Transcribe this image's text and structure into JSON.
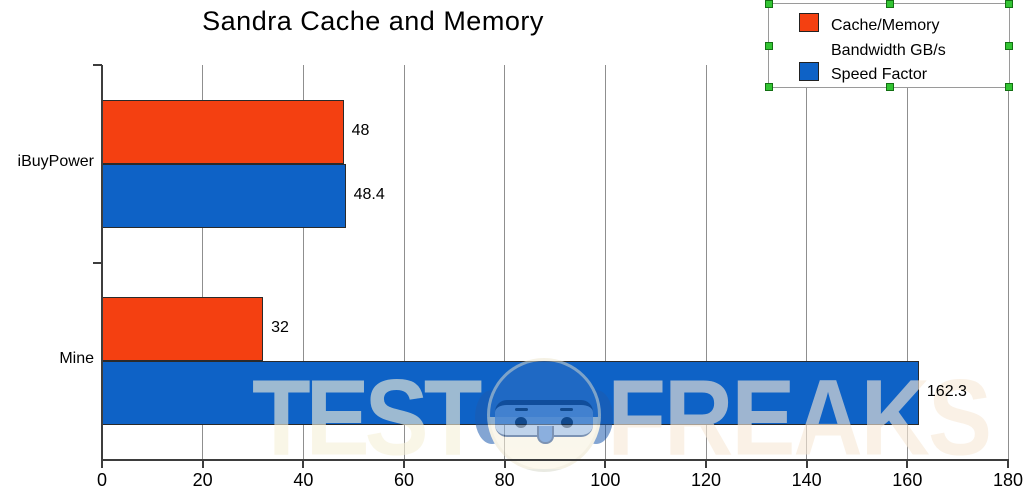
{
  "title": "Sandra Cache and Memory",
  "chart_data": {
    "type": "bar",
    "orientation": "horizontal",
    "title": "Sandra Cache and Memory",
    "categories": [
      "iBuyPower",
      "Mine"
    ],
    "series": [
      {
        "name": "Cache/Memory Bandwidth GB/s",
        "color": "#f44011",
        "values": [
          48,
          32
        ],
        "labels": [
          "48",
          "32"
        ]
      },
      {
        "name": "Speed Factor",
        "color": "#0e62c6",
        "values": [
          48.4,
          162.3
        ],
        "labels": [
          "48.4",
          "162.3"
        ]
      }
    ],
    "xlabel": "",
    "ylabel": "",
    "xlim": [
      0,
      180
    ],
    "xticks": [
      0,
      20,
      40,
      60,
      80,
      100,
      120,
      140,
      160,
      180
    ],
    "grid": "vertical",
    "legend_position": "top-right",
    "legend_selected": true
  },
  "legend": {
    "items": [
      {
        "label": "Cache/Memory Bandwidth GB/s",
        "color": "#f44011"
      },
      {
        "label": "Speed Factor",
        "color": "#0e62c6"
      }
    ]
  },
  "watermark": {
    "text_left": "TEST",
    "text_right": "FREAKS",
    "logo": "testfreaks-mascot-icon"
  },
  "colors": {
    "series1": "#f44011",
    "series2": "#0e62c6",
    "gridline": "#8f8f8f",
    "axis": "#3d3d3d",
    "handle_green": "#33c433"
  }
}
